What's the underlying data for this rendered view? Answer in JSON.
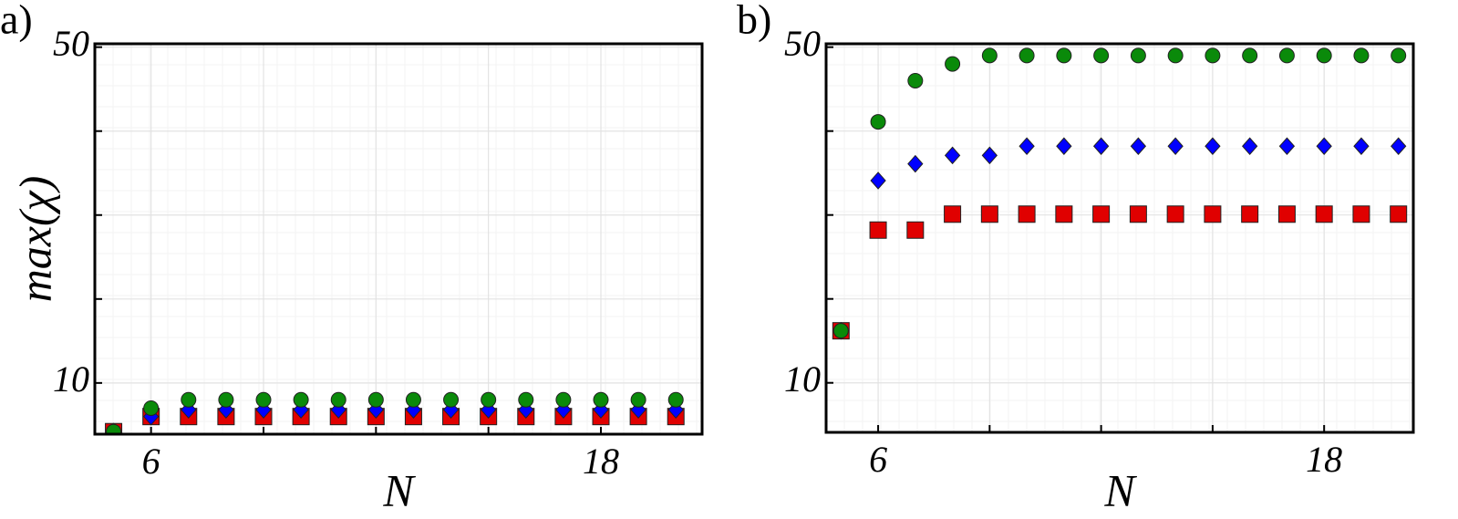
{
  "chart_data": [
    {
      "type": "scatter",
      "panel_label": "a)",
      "xlabel": "N",
      "ylabel": "max(χ)",
      "x": [
        5,
        6,
        7,
        8,
        9,
        10,
        11,
        12,
        13,
        14,
        15,
        16,
        17,
        18,
        19,
        20
      ],
      "series": [
        {
          "color": "#e00000",
          "marker": "square",
          "values": [
            4.2,
            6.0,
            6.0,
            6.0,
            6.0,
            6.0,
            6.0,
            6.0,
            6.0,
            6.0,
            6.0,
            6.0,
            6.0,
            6.0,
            6.0,
            6.0
          ]
        },
        {
          "color": "#0000ff",
          "marker": "diamond",
          "values": [
            4.2,
            6.0,
            6.8,
            6.8,
            6.8,
            6.8,
            6.8,
            6.8,
            6.8,
            6.8,
            6.8,
            6.8,
            6.8,
            6.8,
            6.8,
            6.8
          ]
        },
        {
          "color": "#0a8a0a",
          "marker": "circle",
          "values": [
            4.2,
            7.0,
            8.0,
            8.0,
            8.0,
            8.0,
            8.0,
            8.0,
            8.0,
            8.0,
            8.0,
            8.0,
            8.0,
            8.0,
            8.0,
            8.0
          ]
        }
      ],
      "xlim": [
        4.5,
        20.7
      ],
      "ylim": [
        3.9,
        50.4
      ],
      "xticks": [
        6,
        18
      ],
      "minor_xticks": [
        9,
        12,
        15
      ],
      "yticks": [
        10,
        50
      ],
      "minor_yticks": [
        20,
        30,
        40
      ],
      "grid": true
    },
    {
      "type": "scatter",
      "panel_label": "b)",
      "xlabel": "N",
      "x": [
        5,
        6,
        7,
        8,
        9,
        10,
        11,
        12,
        13,
        14,
        15,
        16,
        17,
        18,
        19,
        20
      ],
      "series": [
        {
          "color": "#e00000",
          "marker": "square",
          "values": [
            16.2,
            28.2,
            28.2,
            30.1,
            30.1,
            30.1,
            30.1,
            30.1,
            30.1,
            30.1,
            30.1,
            30.1,
            30.1,
            30.1,
            30.1,
            30.1
          ]
        },
        {
          "color": "#0000ff",
          "marker": "diamond",
          "values": [
            16.2,
            34.1,
            36.1,
            37.1,
            37.1,
            38.2,
            38.2,
            38.2,
            38.2,
            38.2,
            38.2,
            38.2,
            38.2,
            38.2,
            38.2,
            38.2
          ]
        },
        {
          "color": "#0a8a0a",
          "marker": "circle",
          "values": [
            16.2,
            41.1,
            46.0,
            48.0,
            49.0,
            49.0,
            49.0,
            49.0,
            49.0,
            49.0,
            49.0,
            49.0,
            49.0,
            49.0,
            49.0,
            49.0
          ]
        }
      ],
      "xlim": [
        4.6,
        20.4
      ],
      "ylim": [
        4.1,
        50.4
      ],
      "xticks": [
        6,
        18
      ],
      "minor_xticks": [
        9,
        12,
        15
      ],
      "yticks": [
        10,
        50
      ],
      "minor_yticks": [
        20,
        30,
        40
      ],
      "grid": true
    }
  ]
}
